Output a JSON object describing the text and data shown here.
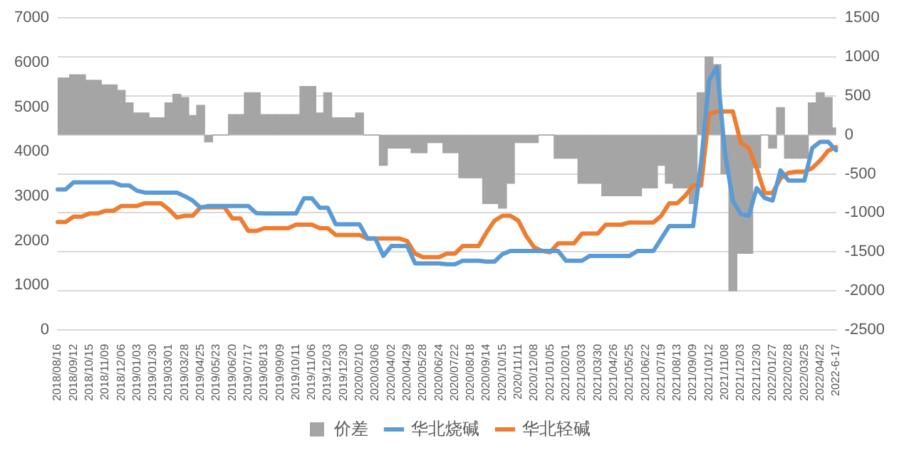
{
  "chart_data": {
    "type": "line",
    "categories": [
      "2018/08/16",
      null,
      "2018/09/12",
      null,
      "2018/10/15",
      null,
      "2018/11/09",
      null,
      "2018/12/06",
      null,
      "2019/01/03",
      null,
      "2019/01/30",
      null,
      "2019/03/01",
      null,
      "2019/03/28",
      null,
      "2019/04/25",
      null,
      "2019/05/23",
      null,
      "2019/06/20",
      null,
      "2019/07/17",
      null,
      "2019/08/13",
      null,
      "2019/09/09",
      null,
      "2019/10/11",
      null,
      "2019/11/06",
      null,
      "2019/12/03",
      null,
      "2019/12/30",
      null,
      "2020/02/10",
      null,
      "2020/03/06",
      null,
      "2020/04/02",
      null,
      "2020/04/29",
      null,
      "2020/05/28",
      null,
      "2020/06/24",
      null,
      "2020/07/22",
      null,
      "2020/08/18",
      null,
      "2020/09/14",
      null,
      "2020/10/15",
      null,
      "2020/11/11",
      null,
      "2020/12/08",
      null,
      "2021/01/05",
      null,
      "2021/02/01",
      null,
      "2021/03/03",
      null,
      "2021/03/30",
      null,
      "2021/04/26",
      null,
      "2021/05/25",
      null,
      "2021/06/22",
      null,
      "2021/07/19",
      null,
      "2021/08/13",
      null,
      "2021/09/09",
      null,
      "2021/10/12",
      null,
      "2021/11/08",
      null,
      "2021/12/03",
      null,
      "2021/12/30",
      null,
      "2022/01/27",
      null,
      "2022/02/28",
      null,
      "2022/03/25",
      null,
      "2022/04/22",
      null,
      "2022-6-17"
    ],
    "series": [
      {
        "name": "价差",
        "type": "bar",
        "axis": "y2",
        "color": "#a5a5a5",
        "values": [
          730,
          730,
          770,
          770,
          700,
          700,
          640,
          640,
          570,
          410,
          280,
          280,
          220,
          220,
          410,
          520,
          480,
          250,
          380,
          -90,
          0,
          0,
          260,
          260,
          540,
          540,
          260,
          260,
          260,
          260,
          260,
          620,
          620,
          280,
          540,
          220,
          220,
          220,
          280,
          0,
          0,
          -390,
          -170,
          -170,
          -170,
          -230,
          -230,
          -100,
          -100,
          -230,
          -230,
          -550,
          -550,
          -550,
          -880,
          -880,
          -940,
          -620,
          -100,
          -100,
          -100,
          0,
          0,
          -300,
          -300,
          -300,
          -620,
          -620,
          -620,
          -780,
          -780,
          -780,
          -780,
          -780,
          -680,
          -680,
          -390,
          -620,
          -680,
          -680,
          -880,
          540,
          1000,
          900,
          -500,
          -2000,
          -1520,
          -1520,
          -420,
          0,
          -170,
          350,
          -300,
          -300,
          -300,
          410,
          540,
          480,
          90
        ]
      },
      {
        "name": "华北烧碱",
        "color": "#5b9bd5",
        "values": [
          3150,
          3150,
          3310,
          3310,
          3310,
          3310,
          3310,
          3310,
          3240,
          3240,
          3120,
          3080,
          3080,
          3080,
          3080,
          3080,
          3000,
          2900,
          2740,
          2780,
          2780,
          2780,
          2780,
          2780,
          2780,
          2620,
          2610,
          2610,
          2610,
          2610,
          2610,
          2950,
          2950,
          2740,
          2740,
          2370,
          2370,
          2370,
          2370,
          2050,
          2050,
          1660,
          1880,
          1880,
          1880,
          1490,
          1490,
          1490,
          1490,
          1470,
          1470,
          1550,
          1550,
          1550,
          1530,
          1530,
          1700,
          1770,
          1770,
          1770,
          1770,
          1770,
          1770,
          1770,
          1550,
          1550,
          1550,
          1660,
          1660,
          1660,
          1660,
          1660,
          1660,
          1770,
          1770,
          1770,
          2050,
          2330,
          2330,
          2330,
          2330,
          3750,
          5600,
          5900,
          3970,
          2900,
          2600,
          2560,
          3180,
          2960,
          2900,
          3580,
          3350,
          3350,
          3350,
          4080,
          4220,
          4220,
          4030
        ]
      },
      {
        "name": "华北轻碱",
        "color": "#ed7d31",
        "values": [
          2420,
          2420,
          2540,
          2540,
          2610,
          2610,
          2670,
          2670,
          2780,
          2780,
          2780,
          2840,
          2840,
          2840,
          2700,
          2520,
          2560,
          2560,
          2750,
          2750,
          2750,
          2750,
          2500,
          2500,
          2220,
          2220,
          2280,
          2280,
          2280,
          2280,
          2360,
          2360,
          2360,
          2280,
          2280,
          2130,
          2130,
          2130,
          2130,
          2050,
          2050,
          2050,
          2050,
          2050,
          1990,
          1710,
          1630,
          1630,
          1630,
          1710,
          1710,
          1880,
          1880,
          1880,
          2190,
          2450,
          2560,
          2560,
          2450,
          2100,
          1850,
          1770,
          1740,
          1940,
          1940,
          1940,
          2160,
          2160,
          2160,
          2360,
          2360,
          2360,
          2410,
          2410,
          2410,
          2410,
          2560,
          2840,
          2840,
          3010,
          3240,
          3240,
          4850,
          4900,
          4900,
          4900,
          4200,
          4080,
          3630,
          3070,
          3070,
          3400,
          3520,
          3550,
          3550,
          3630,
          3800,
          4020,
          4100
        ]
      }
    ],
    "ylim": [
      0,
      7000
    ],
    "yticks": [
      0,
      1000,
      2000,
      3000,
      4000,
      5000,
      6000,
      7000
    ],
    "y2lim": [
      -2500,
      1500
    ],
    "y2ticks": [
      -2500,
      -2000,
      -1500,
      -1000,
      -500,
      0,
      500,
      1000,
      1500
    ],
    "grid": "y2",
    "legend": "bottom",
    "marker": "none"
  }
}
